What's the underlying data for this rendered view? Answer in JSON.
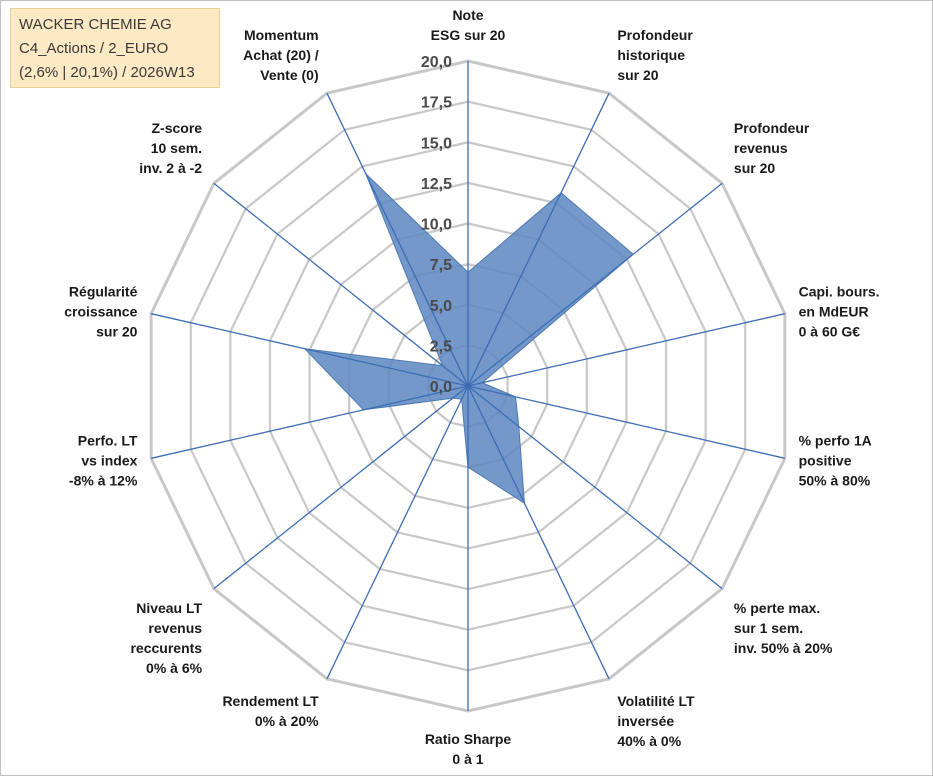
{
  "title_box": {
    "line1": "WACKER CHEMIE AG",
    "line2": "C4_Actions / 2_EURO",
    "line3": "(2,6% | 20,1%) / 2026W13"
  },
  "chart_data": {
    "type": "radar",
    "rmin": 0,
    "rmax": 20,
    "ticks": [
      "0,0",
      "2,5",
      "5,0",
      "7,5",
      "10,0",
      "12,5",
      "15,0",
      "17,5",
      "20,0"
    ],
    "grid": true,
    "fill_color": "#5b86bf",
    "axis_color": "#3c6db5",
    "grid_color": "#c8c8c8",
    "axes": [
      [
        "Note",
        "ESG sur 20"
      ],
      [
        "Profondeur",
        "historique",
        "sur 20"
      ],
      [
        "Profondeur",
        "revenus",
        "sur 20"
      ],
      [
        "Capi. bours.",
        "en MdEUR",
        "0 à 60 G€"
      ],
      [
        "% perfo 1A",
        "positive",
        "50% à 80%"
      ],
      [
        "% perte max.",
        "sur 1 sem.",
        "inv. 50% à 20%"
      ],
      [
        "Volatilité LT",
        "inversée",
        "40% à 0%"
      ],
      [
        "Ratio Sharpe",
        "0 à 1"
      ],
      [
        "Rendement LT",
        "0% à 20%"
      ],
      [
        "Niveau LT",
        "revenus",
        "reccurents",
        "0% à 6%"
      ],
      [
        "Perfo. LT",
        "vs index",
        "-8% à 12%"
      ],
      [
        "Régularité",
        "croissance",
        "sur 20"
      ],
      [
        "Z-score",
        "10 sem.",
        "inv. 2 à -2"
      ],
      [
        "Momentum",
        "Achat (20) /",
        "Vente (0)"
      ]
    ],
    "values": [
      7.0,
      13.2,
      13.0,
      0.9,
      3.0,
      4.0,
      8.0,
      5.0,
      0.9,
      1.2,
      6.6,
      10.3,
      2.0,
      14.5
    ]
  }
}
